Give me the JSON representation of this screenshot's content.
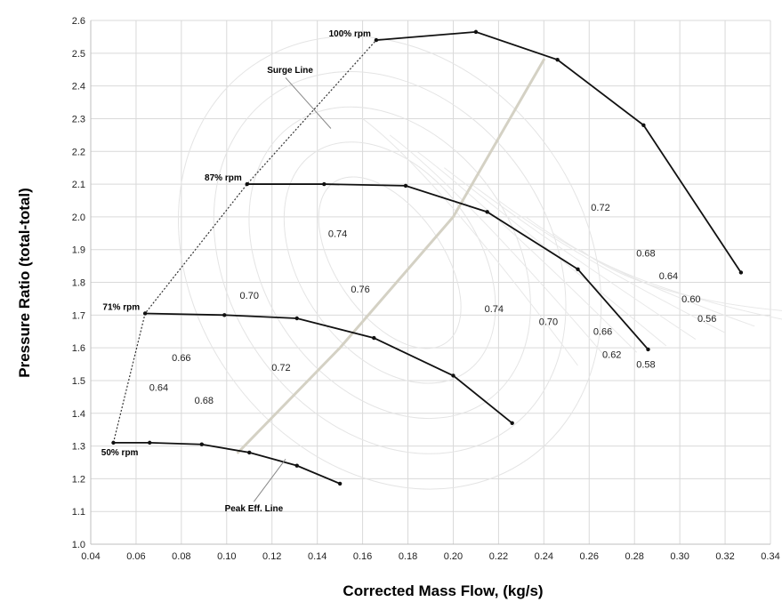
{
  "chart_data": {
    "type": "line",
    "xlabel": "Corrected Mass Flow, (kg/s)",
    "ylabel": "Pressure Ratio (total-total)",
    "xlim": [
      0.04,
      0.34
    ],
    "ylim": [
      1.0,
      2.6
    ],
    "xticks": [
      "0.04",
      "0.06",
      "0.08",
      "0.10",
      "0.12",
      "0.14",
      "0.16",
      "0.18",
      "0.20",
      "0.22",
      "0.24",
      "0.26",
      "0.28",
      "0.30",
      "0.32",
      "0.34"
    ],
    "yticks": [
      "1.0",
      "1.1",
      "1.2",
      "1.3",
      "1.4",
      "1.5",
      "1.6",
      "1.7",
      "1.8",
      "1.9",
      "2.0",
      "2.1",
      "2.2",
      "2.3",
      "2.4",
      "2.5",
      "2.6"
    ],
    "grid": true,
    "series": [
      {
        "name": "100% rpm",
        "x": [
          0.166,
          0.21,
          0.246,
          0.284,
          0.327
        ],
        "y": [
          2.54,
          2.565,
          2.48,
          2.28,
          1.83
        ]
      },
      {
        "name": "87% rpm",
        "x": [
          0.109,
          0.143,
          0.179,
          0.215,
          0.255,
          0.286
        ],
        "y": [
          2.1,
          2.1,
          2.095,
          2.015,
          1.84,
          1.595
        ]
      },
      {
        "name": "71% rpm",
        "x": [
          0.064,
          0.099,
          0.131,
          0.165,
          0.2,
          0.226
        ],
        "y": [
          1.705,
          1.7,
          1.69,
          1.63,
          1.515,
          1.37
        ]
      },
      {
        "name": "50% rpm",
        "x": [
          0.05,
          0.066,
          0.089,
          0.11,
          0.131,
          0.15
        ],
        "y": [
          1.31,
          1.31,
          1.305,
          1.28,
          1.24,
          1.185
        ]
      }
    ],
    "surge_line": {
      "x": [
        0.05,
        0.064,
        0.109,
        0.166
      ],
      "y": [
        1.31,
        1.705,
        2.1,
        2.54
      ]
    },
    "peak_eff_line": {
      "x": [
        0.105,
        0.15,
        0.2,
        0.24
      ],
      "y": [
        1.28,
        1.6,
        2.0,
        2.48
      ]
    },
    "efficiency_labels": [
      {
        "text": "0.74",
        "x": 0.149,
        "y": 1.95
      },
      {
        "text": "0.76",
        "x": 0.159,
        "y": 1.78
      },
      {
        "text": "0.74",
        "x": 0.218,
        "y": 1.72
      },
      {
        "text": "0.72",
        "x": 0.265,
        "y": 2.03
      },
      {
        "text": "0.70",
        "x": 0.242,
        "y": 1.68
      },
      {
        "text": "0.68",
        "x": 0.285,
        "y": 1.89
      },
      {
        "text": "0.66",
        "x": 0.266,
        "y": 1.65
      },
      {
        "text": "0.64",
        "x": 0.295,
        "y": 1.82
      },
      {
        "text": "0.60",
        "x": 0.305,
        "y": 1.75
      },
      {
        "text": "0.56",
        "x": 0.312,
        "y": 1.69
      },
      {
        "text": "0.62",
        "x": 0.27,
        "y": 1.58
      },
      {
        "text": "0.58",
        "x": 0.285,
        "y": 1.55
      },
      {
        "text": "0.70",
        "x": 0.11,
        "y": 1.76
      },
      {
        "text": "0.66",
        "x": 0.08,
        "y": 1.57
      },
      {
        "text": "0.72",
        "x": 0.124,
        "y": 1.54
      },
      {
        "text": "0.64",
        "x": 0.07,
        "y": 1.48
      },
      {
        "text": "0.68",
        "x": 0.09,
        "y": 1.44
      }
    ],
    "annotations": [
      {
        "text": "Surge Line",
        "x": 0.128,
        "y": 2.44,
        "lx1": 0.126,
        "ly1": 2.425,
        "lx2": 0.146,
        "ly2": 2.27
      },
      {
        "text": "Peak Eff. Line",
        "x": 0.112,
        "y": 1.1,
        "lx1": 0.112,
        "ly1": 1.13,
        "lx2": 0.126,
        "ly2": 1.26
      }
    ]
  }
}
